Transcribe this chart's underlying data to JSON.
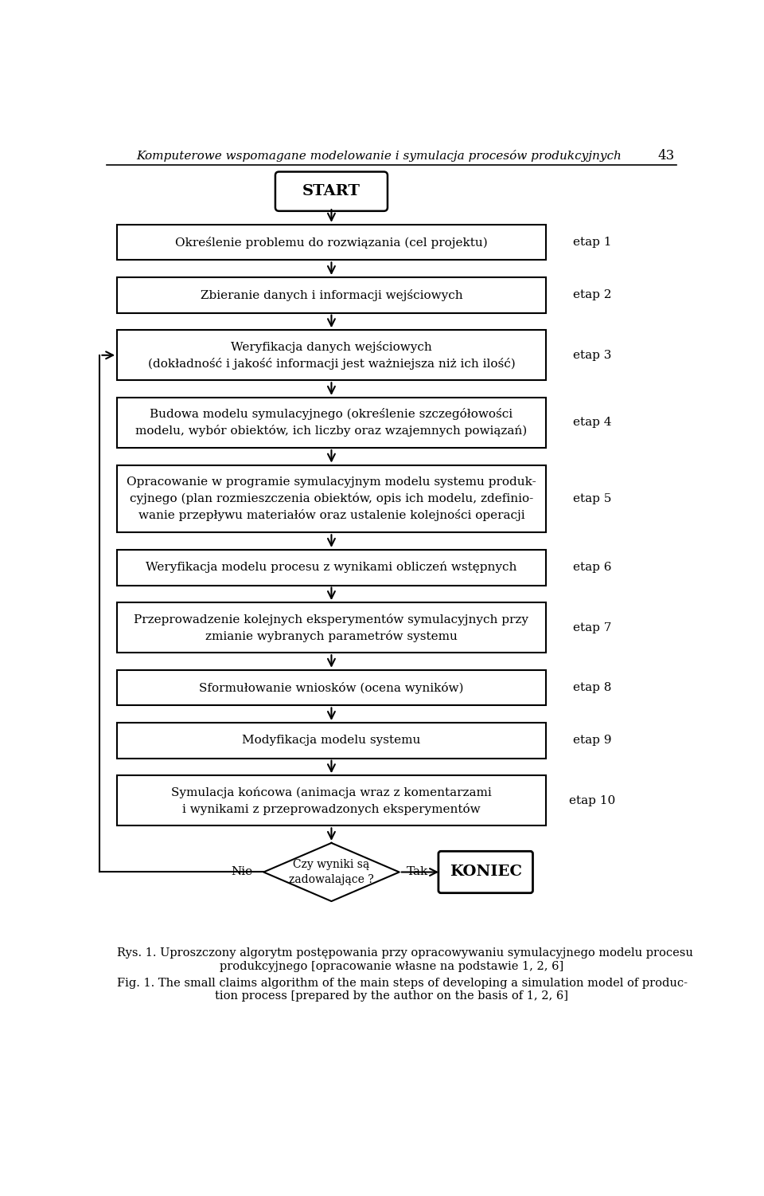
{
  "title_italic": "Komputerowe wspomagane modelowanie i symulacja procesów produkcyjnych",
  "page_number": "43",
  "start_label": "START",
  "boxes": [
    {
      "label": "Określenie problemu do rozwiązania (cel projektu)",
      "etap": "etap 1",
      "lines": 1
    },
    {
      "label": "Zbieranie danych i informacji wejściowych",
      "etap": "etap 2",
      "lines": 1
    },
    {
      "label": "Weryfikacja danych wejściowych\n(dokładność i jakość informacji jest ważniejsza niż ich ilość)",
      "etap": "etap 3",
      "lines": 2
    },
    {
      "label": "Budowa modelu symulacyjnego (określenie szczegółowości\nmodelu, wybór obiektów, ich liczby oraz wzajemnych powiązań)",
      "etap": "etap 4",
      "lines": 2
    },
    {
      "label": "Opracowanie w programie symulacyjnym modelu systemu produk-\ncyjnego (plan rozmieszczenia obiektów, opis ich modelu, zdefinio-\nwanie przepływu materiałów oraz ustalenie kolejności operacji",
      "etap": "etap 5",
      "lines": 3
    },
    {
      "label": "Weryfikacja modelu procesu z wynikami obliczeń wstępnych",
      "etap": "etap 6",
      "lines": 1
    },
    {
      "label": "Przeprowadzenie kolejnych eksperymentów symulacyjnych przy\nzmianie wybranych parametrów systemu",
      "etap": "etap 7",
      "lines": 2
    },
    {
      "label": "Sformułowanie wniosków (ocena wyników)",
      "etap": "etap 8",
      "lines": 1
    },
    {
      "label": "Modyfikacja modelu systemu",
      "etap": "etap 9",
      "lines": 1
    },
    {
      "label": "Symulacja końcowa (animacja wraz z komentarzami\ni wynikami z przeprowadzonych eksperymentów",
      "etap": "etap 10",
      "lines": 2
    }
  ],
  "diamond_label": "Czy wyniki są\nzadowalające ?",
  "nie_label": "Nie",
  "tak_label": "Tak",
  "koniec_label": "KONIEC",
  "caption_line1": "Rys. 1. Uproszczony algorytm postępowania przy opracowywaniu symulacyjnego modelu procesu",
  "caption_line2": "produkcyjnego [opracowanie własne na podstawie 1, 2, 6]",
  "caption_line3": "Fig. 1. The small claims algorithm of the main steps of developing a simulation model of produc-",
  "caption_line4": "tion process [prepared by the author on the basis of 1, 2, 6]",
  "bg_color": "#ffffff",
  "box_edge_color": "#000000",
  "text_color": "#000000"
}
